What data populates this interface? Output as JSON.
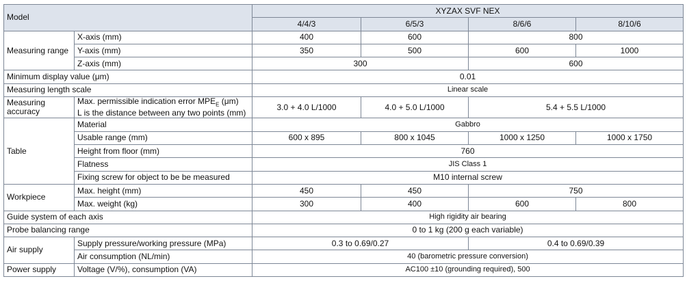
{
  "header": {
    "model_label": "Model",
    "series": "XYZAX SVF NEX",
    "models": [
      "4/4/3",
      "6/5/3",
      "8/6/6",
      "8/10/6"
    ]
  },
  "sections": [
    {
      "title": "Measuring range",
      "items": [
        {
          "label": "X-axis (mm)",
          "values": [
            "400",
            "600",
            "800"
          ]
        },
        {
          "label": "Y-axis (mm)",
          "values": [
            "350",
            "500",
            "600",
            "1000"
          ]
        },
        {
          "label": "Z-axis (mm)",
          "values": [
            "300",
            "600"
          ]
        }
      ]
    },
    {
      "title": "Minimum display value (μm)",
      "values": [
        "0.01"
      ]
    },
    {
      "title": "Measuring length scale",
      "values": [
        "Linear scale"
      ]
    },
    {
      "title": "Measuring accuracy",
      "items": [
        {
          "label": "Max. permissible indication error MPE",
          "label_sub": "E",
          "label_unit": " (μm)",
          "note": "L is the distance between any two points (mm)",
          "values": [
            "3.0 + 4.0 L/1000",
            "4.0 + 5.0 L/1000",
            "5.4 + 5.5 L/1000"
          ]
        }
      ]
    },
    {
      "title": "Table",
      "items": [
        {
          "label": "Material",
          "values": [
            "Gabbro"
          ]
        },
        {
          "label": "Usable range (mm)",
          "values": [
            "600 x 895",
            "800 x 1045",
            "1000 x 1250",
            "1000 x 1750"
          ]
        },
        {
          "label": "Height from floor (mm)",
          "values": [
            "760"
          ]
        },
        {
          "label": "Flatness",
          "values": [
            "JIS Class 1"
          ]
        },
        {
          "label": "Fixing screw for object to be be measured",
          "values": [
            "M10 internal screw"
          ]
        }
      ]
    },
    {
      "title": "Workpiece",
      "items": [
        {
          "label": "Max. height (mm)",
          "values": [
            "450",
            "450",
            "750"
          ]
        },
        {
          "label": "Max. weight (kg)",
          "values": [
            "300",
            "400",
            "600",
            "800"
          ]
        }
      ]
    },
    {
      "title": "Guide system of each axis",
      "values": [
        "High rigidity air bearing"
      ]
    },
    {
      "title": "Probe balancing range",
      "values": [
        "0 to 1 kg (200 g each variable)"
      ]
    },
    {
      "title": "Air supply",
      "items": [
        {
          "label": "Supply pressure/working pressure (MPa)",
          "values": [
            "0.3 to 0.69/0.27",
            "0.4 to 0.69/0.39"
          ]
        },
        {
          "label": "Air consumption (NL/min)",
          "values": [
            "40 (barometric pressure conversion)"
          ]
        }
      ]
    },
    {
      "title": "Power supply",
      "items": [
        {
          "label": "Voltage (V/%), consumption (VA)",
          "values": [
            "AC100 ±10 (grounding required), 500"
          ]
        }
      ]
    }
  ]
}
